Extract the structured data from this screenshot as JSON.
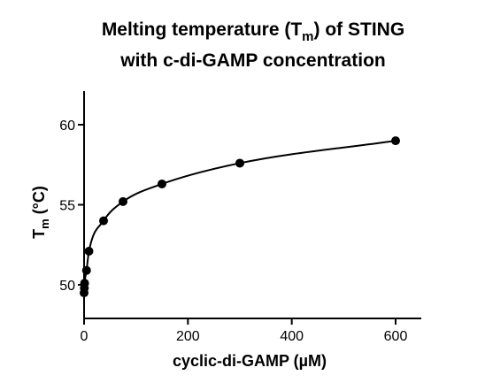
{
  "chart_data": {
    "type": "scatter",
    "title": {
      "line1_prefix": "Melting temperature (T",
      "line1_sub": "m",
      "line1_suffix": ") of STING",
      "line2": "with c-di-GAMP concentration"
    },
    "xlabel": "cyclic-di-GAMP (µM)",
    "ylabel": {
      "main": "T",
      "sub": "m",
      "suffix": " (°C)"
    },
    "xlim": [
      0,
      650
    ],
    "ylim": [
      48,
      62
    ],
    "x_ticks": [
      0,
      200,
      400,
      600
    ],
    "y_ticks": [
      50,
      55,
      60
    ],
    "grid": false,
    "legend": "none",
    "points": [
      {
        "x": 0,
        "y": 49.5
      },
      {
        "x": 0.5,
        "y": 49.8
      },
      {
        "x": 1,
        "y": 50.1
      },
      {
        "x": 4.7,
        "y": 50.9
      },
      {
        "x": 9.4,
        "y": 52.1
      },
      {
        "x": 37.5,
        "y": 54.0
      },
      {
        "x": 75,
        "y": 55.2
      },
      {
        "x": 150,
        "y": 56.3
      },
      {
        "x": 300,
        "y": 57.6
      },
      {
        "x": 600,
        "y": 59.0
      }
    ],
    "fit_curve": true
  }
}
